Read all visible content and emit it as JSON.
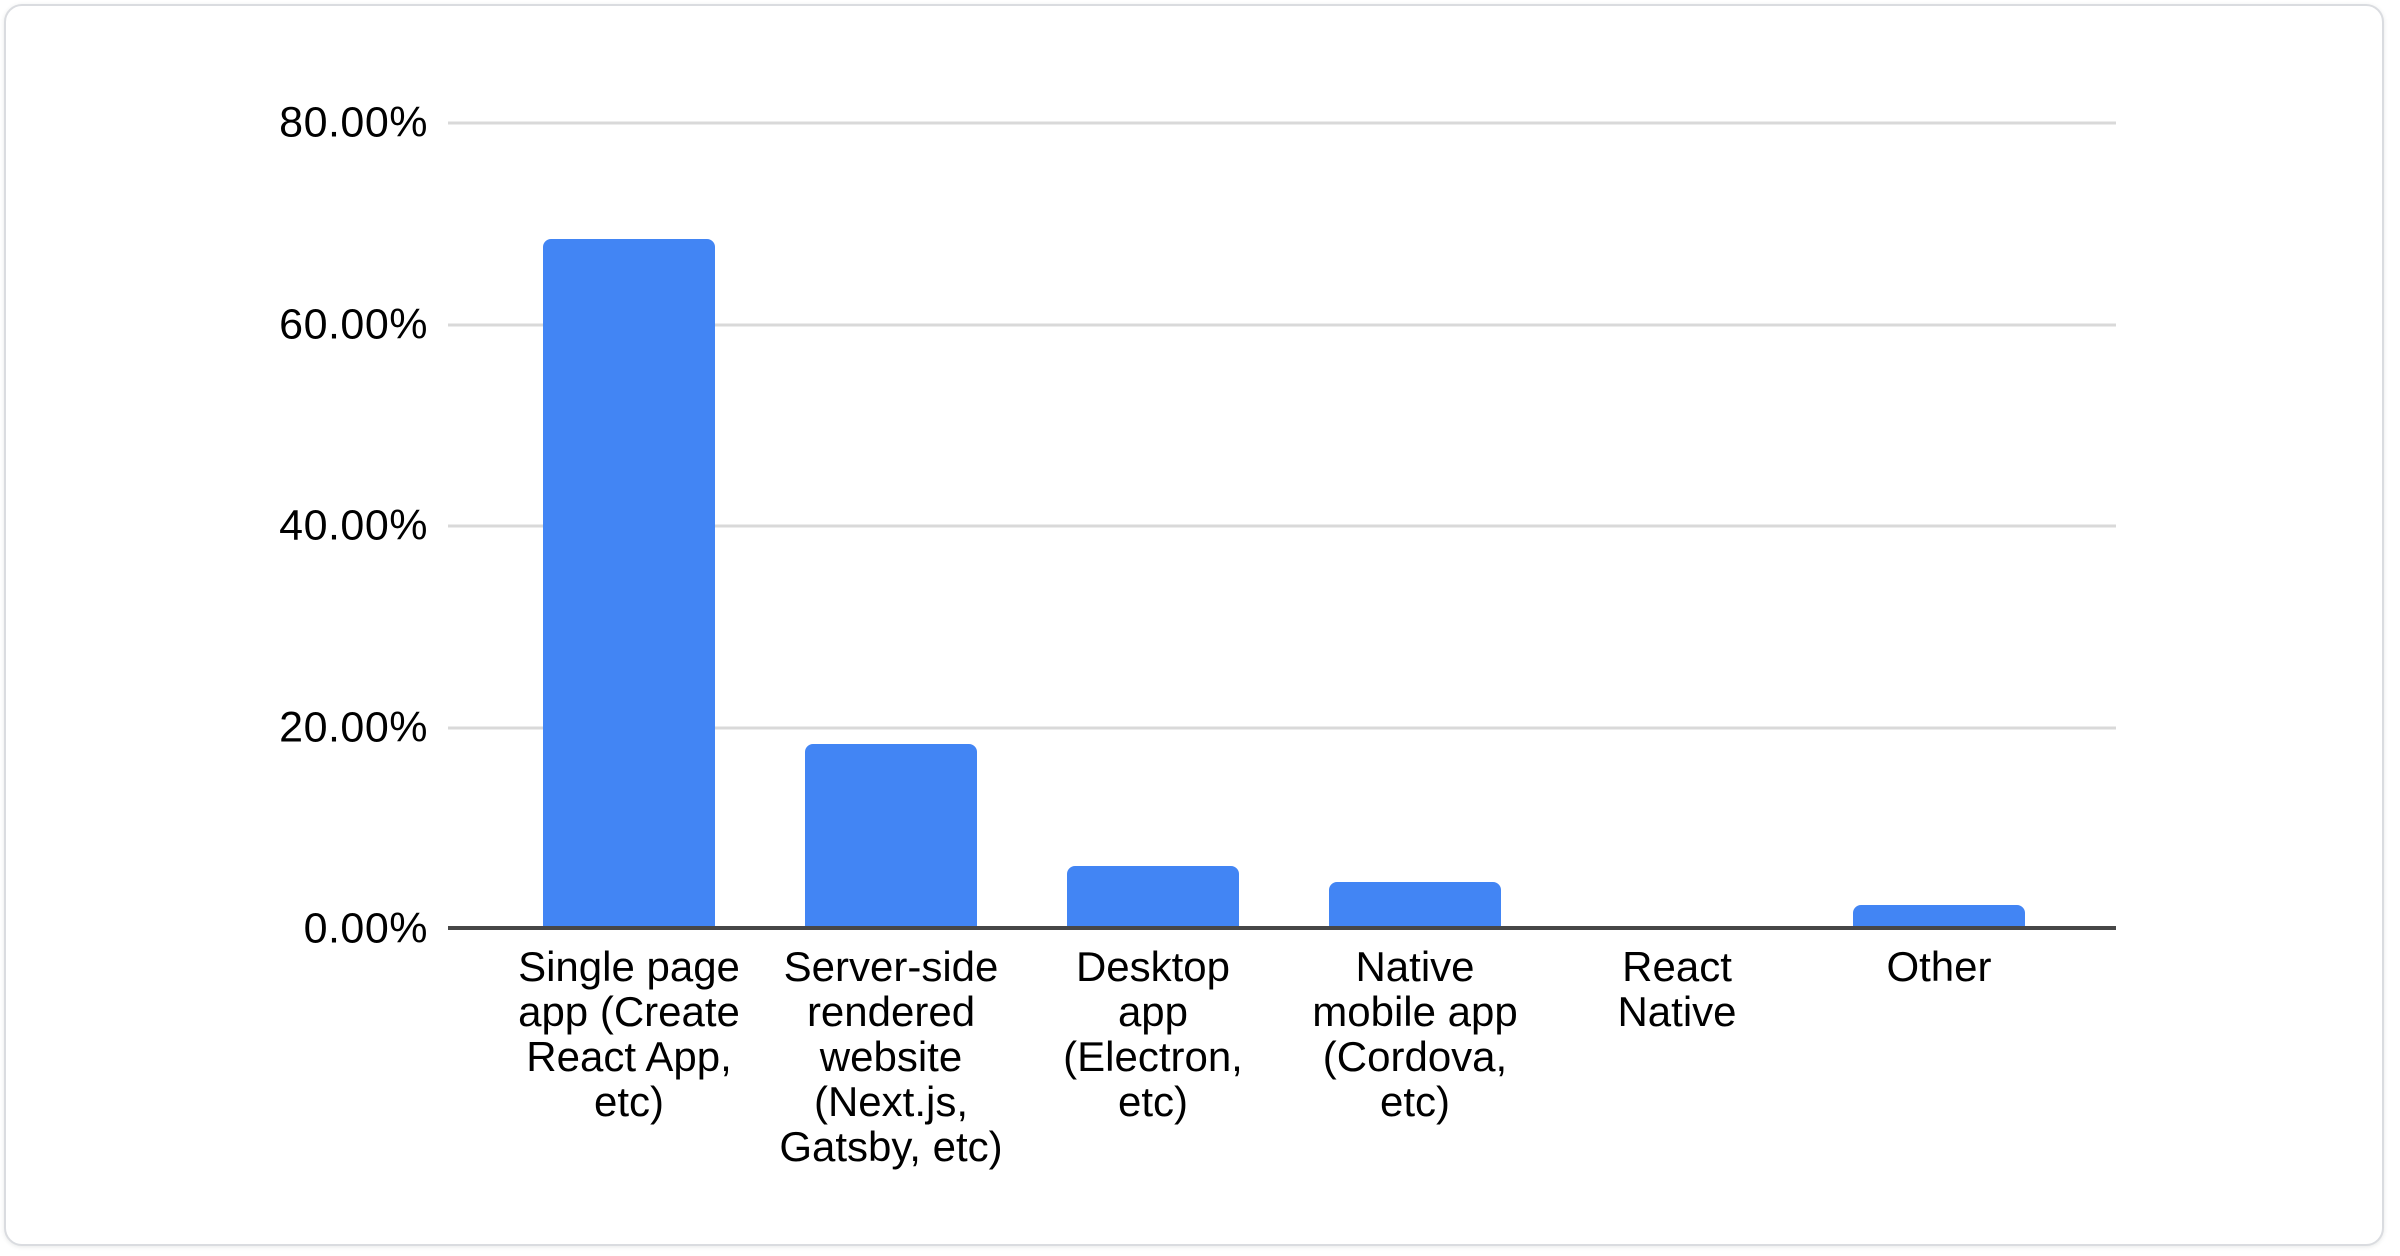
{
  "chart_data": {
    "type": "bar",
    "title": "",
    "xlabel": "",
    "ylabel": "",
    "categories": [
      "Single page app (Create React App, etc)",
      "Server-side rendered website (Next.js, Gatsby, etc)",
      "Desktop app (Electron, etc)",
      "Native mobile app (Cordova, etc)",
      "React Native",
      "Other"
    ],
    "values": [
      68.5,
      18.4,
      6.3,
      4.7,
      0,
      2.4
    ],
    "value_unit": "%",
    "ylim": [
      0,
      80
    ],
    "y_ticks": [
      {
        "value": 0,
        "label": "0.00%"
      },
      {
        "value": 20,
        "label": "20.00%"
      },
      {
        "value": 40,
        "label": "40.00%"
      },
      {
        "value": 60,
        "label": "60.00%"
      },
      {
        "value": 80,
        "label": "80.00%"
      }
    ],
    "grid": true,
    "legend_position": "none",
    "bar_color": "#4285f4"
  },
  "x_axis": {
    "labels_display": [
      "Single page\napp (Create\nReact App,\netc)",
      "Server-side\nrendered\nwebsite\n(Next.js,\nGatsby, etc)",
      "Desktop\napp\n(Electron,\netc)",
      "Native\nmobile app\n(Cordova,\netc)",
      "React\nNative",
      "Other"
    ]
  },
  "colors": {
    "bar": "#4285f4",
    "gridline": "#d9d9d9",
    "axis_line": "#474747",
    "label_text": "#000000",
    "card_background": "#ffffff",
    "card_border": "#dadce0"
  }
}
